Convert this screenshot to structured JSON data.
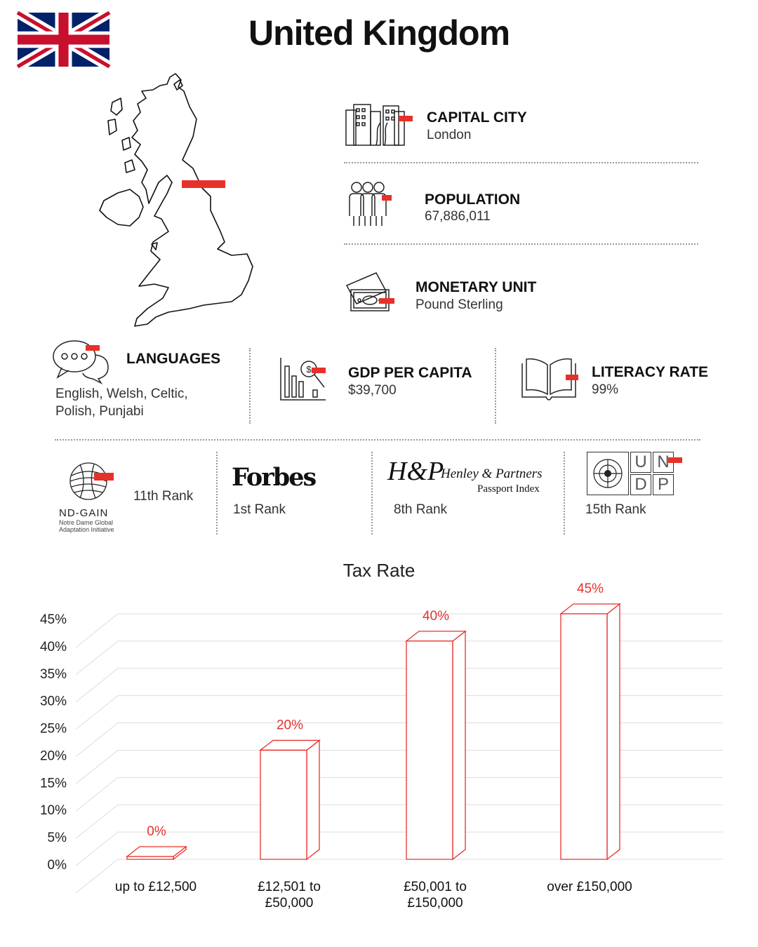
{
  "title": "United Kingdom",
  "facts": {
    "capital": {
      "label": "CAPITAL CITY",
      "value": "London",
      "icon": "city-buildings-icon"
    },
    "population": {
      "label": "POPULATION",
      "value": "67,886,011",
      "icon": "people-icon"
    },
    "monetary": {
      "label": "MONETARY UNIT",
      "value": "Pound Sterling",
      "icon": "banknote-icon"
    },
    "languages": {
      "label": "LANGUAGES",
      "value_line1": "English, Welsh, Celtic,",
      "value_line2": "Polish, Punjabi",
      "icon": "speech-bubbles-icon"
    },
    "gdp": {
      "label": "GDP PER CAPITA",
      "value": "$39,700",
      "icon": "dollar-chart-icon"
    },
    "literacy": {
      "label": "LITERACY RATE",
      "value": "99%",
      "icon": "open-book-icon"
    }
  },
  "rankings": {
    "ndgain": {
      "logo": "ND-GAIN",
      "sub1": "Notre Dame Global",
      "sub2": "Adaptation Initiative",
      "rank": "11th Rank"
    },
    "forbes": {
      "logo": "Forbes",
      "rank": "1st Rank"
    },
    "henley": {
      "logo_mark": "H&P",
      "logo_line1": "Henley & Partners",
      "logo_line2": "Passport Index",
      "rank": "8th Rank"
    },
    "undp": {
      "letters": [
        "U",
        "N",
        "D",
        "P"
      ],
      "rank": "15th Rank"
    }
  },
  "colors": {
    "accent": "#e8302a",
    "bar": "#e8302a",
    "grid": "#dddddd"
  },
  "chart_data": {
    "type": "bar",
    "title": "Tax Rate",
    "categories": [
      [
        "up to £12,500"
      ],
      [
        "£12,501 to",
        "£50,000"
      ],
      [
        "£50,001 to",
        "£150,000"
      ],
      [
        "over £150,000"
      ]
    ],
    "values": [
      0,
      20,
      40,
      45
    ],
    "value_labels": [
      "0%",
      "20%",
      "40%",
      "45%"
    ],
    "yticks": [
      "0%",
      "5%",
      "10%",
      "15%",
      "20%",
      "25%",
      "30%",
      "35%",
      "40%",
      "45%"
    ],
    "ylim": [
      0,
      45
    ],
    "grid": true,
    "style": "3d"
  }
}
